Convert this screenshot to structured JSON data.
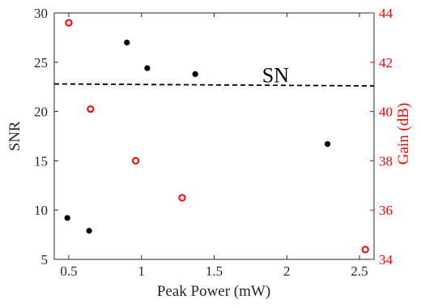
{
  "chart_data": {
    "type": "scatter",
    "xlabel": "Peak Power (mW)",
    "ylabel_left": "SNR",
    "ylabel_right": "Gain (dB)",
    "xlim": [
      0.4,
      2.6
    ],
    "ylim_left": [
      5,
      30
    ],
    "ylim_right": [
      34,
      44
    ],
    "x_ticks": [
      "0.5",
      "1",
      "1.5",
      "2",
      "2.5"
    ],
    "y_left_ticks": [
      "5",
      "10",
      "15",
      "20",
      "25",
      "30"
    ],
    "y_right_ticks": [
      "34",
      "36",
      "38",
      "40",
      "42",
      "44"
    ],
    "colors": {
      "left_axis": "#000000",
      "right_axis": "#ff0000",
      "snr_points": "#000000",
      "gain_points": "#ff0000"
    },
    "series": [
      {
        "axis": "left",
        "marker": "filled-circle",
        "points": [
          {
            "x": 0.49,
            "y": 9.2
          },
          {
            "x": 0.64,
            "y": 7.9
          },
          {
            "x": 0.9,
            "y": 27.0
          },
          {
            "x": 1.04,
            "y": 24.4
          },
          {
            "x": 1.37,
            "y": 23.8
          },
          {
            "x": 2.28,
            "y": 16.7
          }
        ]
      },
      {
        "axis": "right",
        "marker": "open-circle",
        "points": [
          {
            "x": 0.5,
            "y": 43.6
          },
          {
            "x": 0.65,
            "y": 40.1
          },
          {
            "x": 0.96,
            "y": 38.0
          },
          {
            "x": 1.28,
            "y": 36.5
          },
          {
            "x": 2.54,
            "y": 34.4
          }
        ]
      }
    ],
    "reference_line": {
      "axis": "left",
      "style": "dashed",
      "y_start": 22.8,
      "y_end": 22.6,
      "label": "SN"
    }
  }
}
